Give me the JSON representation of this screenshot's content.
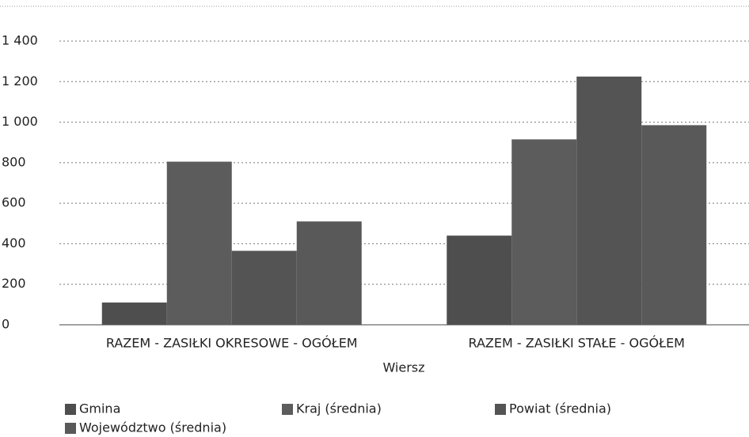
{
  "chart_data": {
    "type": "bar",
    "categories": [
      "RAZEM -  ZASIŁKI OKRESOWE - OGÓŁEM",
      "RAZEM -  ZASIŁKI STAŁE - OGÓŁEM"
    ],
    "series": [
      {
        "name": "Gmina",
        "color": "#4e4e4e",
        "values": [
          110,
          440
        ]
      },
      {
        "name": "Kraj (średnia)",
        "color": "#5c5c5c",
        "values": [
          805,
          915
        ]
      },
      {
        "name": "Powiat (średnia)",
        "color": "#545454",
        "values": [
          365,
          1225
        ]
      },
      {
        "name": "Województwo (średnia)",
        "color": "#595959",
        "values": [
          510,
          985
        ]
      }
    ],
    "xlabel": "Wiersz",
    "ylim": [
      0,
      1400
    ],
    "yticks": [
      0,
      200,
      400,
      600,
      800,
      {
        "value": 1000,
        "label": "1 000"
      },
      {
        "value": 1200,
        "label": "1 200"
      },
      {
        "value": 1400,
        "label": "1 400"
      }
    ],
    "grid": true
  }
}
